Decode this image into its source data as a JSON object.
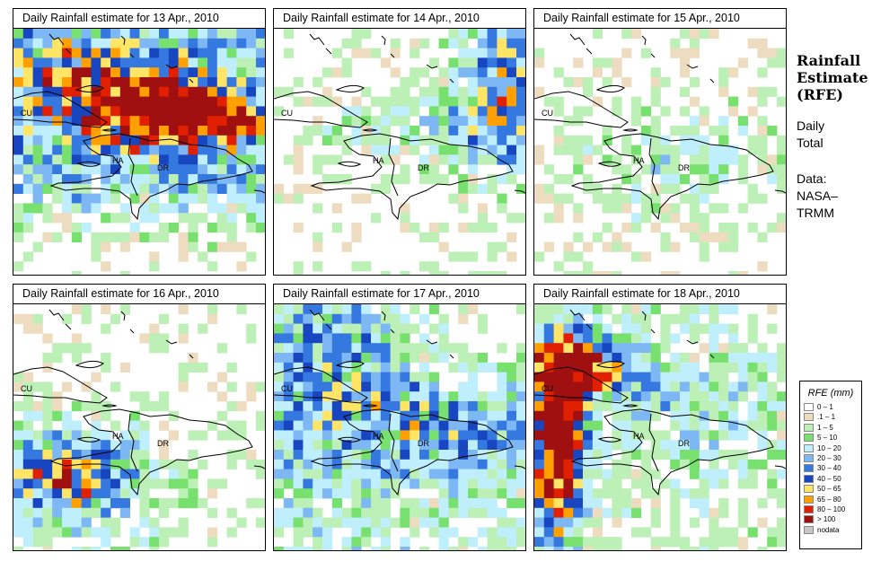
{
  "panels": [
    {
      "title": "Daily Rainfall estimate for  13 Apr., 2010",
      "profile": "heavy_east"
    },
    {
      "title": "Daily Rainfall estimate for  14 Apr., 2010",
      "profile": "light_ne"
    },
    {
      "title": "Daily Rainfall estimate for  15 Apr., 2010",
      "profile": "light"
    },
    {
      "title": "Daily Rainfall estimate for  16 Apr., 2010",
      "profile": "southwest"
    },
    {
      "title": "Daily Rainfall estimate for  17 Apr., 2010",
      "profile": "moderate"
    },
    {
      "title": "Daily Rainfall estimate for  18 Apr., 2010",
      "profile": "heavy_west"
    }
  ],
  "map_labels": {
    "cuba": "CU",
    "haiti": "HA",
    "dominican_republic": "DR"
  },
  "side": {
    "title_lines": [
      "Rainfall",
      "Estimate",
      "(RFE)"
    ],
    "period_lines": [
      "Daily",
      "Total"
    ],
    "source_lines": [
      "Data:",
      "NASA–",
      "TRMM"
    ]
  },
  "legend": {
    "title": "RFE (mm)",
    "items": [
      {
        "label": "0 – 1",
        "color": "#ffffff"
      },
      {
        "label": ".1 – 1",
        "color": "#eedcc0"
      },
      {
        "label": "1 – 5",
        "color": "#bdf0b6"
      },
      {
        "label": "5 – 10",
        "color": "#78e06e"
      },
      {
        "label": "10 – 20",
        "color": "#bfeefc"
      },
      {
        "label": "20 – 30",
        "color": "#7db8f5"
      },
      {
        "label": "30 – 40",
        "color": "#3478e0"
      },
      {
        "label": "40 – 50",
        "color": "#1845c0"
      },
      {
        "label": "50 – 65",
        "color": "#ffe566"
      },
      {
        "label": "65 – 80",
        "color": "#ffa000"
      },
      {
        "label": "80 – 100",
        "color": "#e02000"
      },
      {
        "label": "> 100",
        "color": "#a01010"
      },
      {
        "label": "nodata",
        "color": "#c8c8c8"
      }
    ]
  }
}
